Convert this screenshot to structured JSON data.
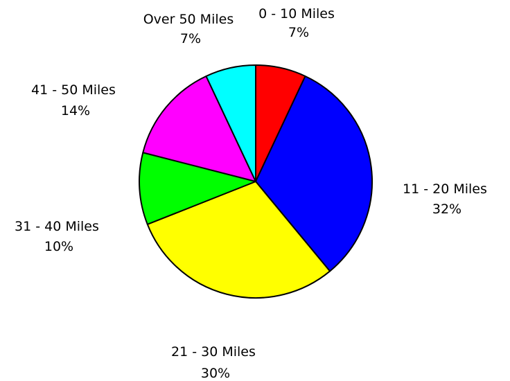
{
  "chart_data": {
    "type": "pie",
    "title": "",
    "start_angle_deg": 0,
    "direction": "clockwise",
    "slices": [
      {
        "label": "0 - 10 Miles",
        "pct_label": "7%",
        "value": 7,
        "color": "#ff0000"
      },
      {
        "label": "11 - 20 Miles",
        "pct_label": "32%",
        "value": 32,
        "color": "#0000ff"
      },
      {
        "label": "21 - 30 Miles",
        "pct_label": "30%",
        "value": 30,
        "color": "#ffff00"
      },
      {
        "label": "31 - 40 Miles",
        "pct_label": "10%",
        "value": 10,
        "color": "#00ff00"
      },
      {
        "label": "41 - 50 Miles",
        "pct_label": "14%",
        "value": 14,
        "color": "#ff00ff"
      },
      {
        "label": "Over 50 Miles",
        "pct_label": "7%",
        "value": 7,
        "color": "#00ffff"
      }
    ]
  }
}
